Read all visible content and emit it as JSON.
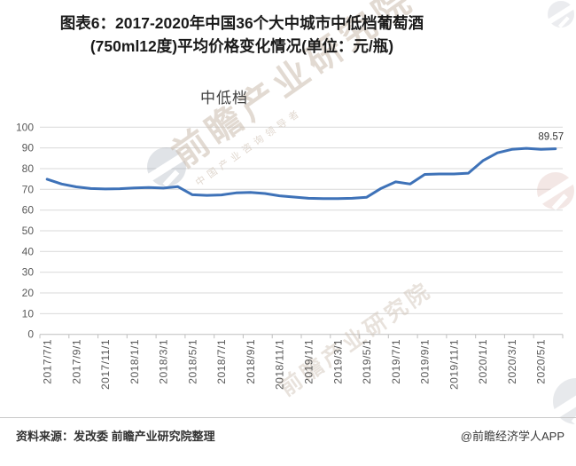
{
  "page": {
    "title_line1": "图表6：2017-2020年中国36个大中城市中低档葡萄酒",
    "title_line2": "(750ml12度)平均价格变化情况(单位：元/瓶)",
    "footer_source": "资料来源：发改委 前瞻产业研究院整理",
    "footer_credit": "@前瞻经济学人APP"
  },
  "watermark": {
    "brand_text": "前瞻产业研究院",
    "tagline_text": "中国产业咨询领导者"
  },
  "chart_data": {
    "type": "line",
    "title": "中低档",
    "unit": "元/瓶",
    "x": [
      "2017/7/1",
      "2017/8/1",
      "2017/9/1",
      "2017/10/1",
      "2017/11/1",
      "2017/12/1",
      "2018/1/1",
      "2018/2/1",
      "2018/3/1",
      "2018/4/1",
      "2018/5/1",
      "2018/6/1",
      "2018/7/1",
      "2018/8/1",
      "2018/9/1",
      "2018/10/1",
      "2018/11/1",
      "2018/12/1",
      "2019/1/1",
      "2019/2/1",
      "2019/3/1",
      "2019/4/1",
      "2019/5/1",
      "2019/6/1",
      "2019/7/1",
      "2019/8/1",
      "2019/9/1",
      "2019/10/1",
      "2019/11/1",
      "2019/12/1",
      "2020/1/1",
      "2020/2/1",
      "2020/3/1",
      "2020/4/1",
      "2020/5/1",
      "2020/6/1"
    ],
    "values": [
      74.9,
      72.6,
      71.2,
      70.4,
      70.2,
      70.3,
      70.7,
      70.9,
      70.6,
      71.3,
      67.4,
      67.1,
      67.3,
      68.3,
      68.5,
      68.0,
      66.9,
      66.3,
      65.7,
      65.5,
      65.5,
      65.7,
      66.2,
      70.5,
      73.6,
      72.6,
      77.2,
      77.4,
      77.4,
      77.8,
      83.8,
      87.6,
      89.3,
      89.8,
      89.3,
      89.57
    ],
    "x_tick_labels": [
      "2017/7/1",
      "2017/9/1",
      "2017/11/1",
      "2018/1/1",
      "2018/3/1",
      "2018/5/1",
      "2018/7/1",
      "2018/9/1",
      "2018/11/1",
      "2019/1/1",
      "2019/3/1",
      "2019/5/1",
      "2019/7/1",
      "2019/9/1",
      "2019/11/1",
      "2020/1/1",
      "2020/3/1",
      "2020/5/1"
    ],
    "ylim": [
      0,
      100
    ],
    "ytick_step": 10,
    "grid": true,
    "legend": "none",
    "end_label": "89.57",
    "colors": {
      "line": "#3e72b8",
      "grid": "#d9d9d9",
      "axis": "#bfbfbf",
      "tick_label": "#595959",
      "end_label": "#333333"
    }
  }
}
